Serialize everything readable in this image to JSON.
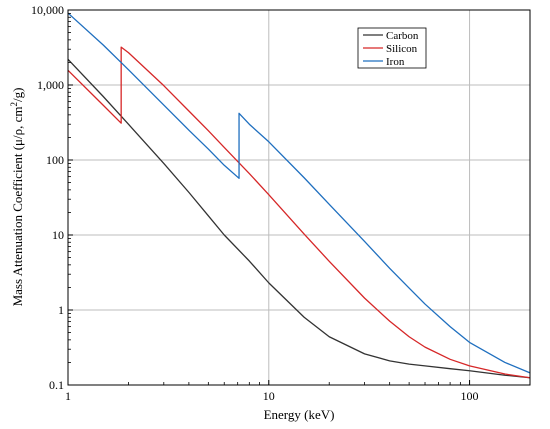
{
  "chart_data": {
    "type": "line",
    "title": "",
    "xlabel": "Energy (keV)",
    "ylabel_main": "Mass Attenuation Coefficient (μ/ρ, cm",
    "ylabel_sup": "2",
    "ylabel_end": "/g)",
    "x_scale": "log",
    "y_scale": "log",
    "xlim": [
      1,
      200
    ],
    "ylim": [
      0.1,
      10000
    ],
    "x_ticks": [
      {
        "value": 1,
        "label": "1"
      },
      {
        "value": 10,
        "label": "10"
      },
      {
        "value": 100,
        "label": "100"
      }
    ],
    "y_ticks": [
      {
        "value": 0.1,
        "label": "0.1"
      },
      {
        "value": 1,
        "label": "1"
      },
      {
        "value": 10,
        "label": "10"
      },
      {
        "value": 100,
        "label": "100"
      },
      {
        "value": 1000,
        "label": "1,000"
      },
      {
        "value": 10000,
        "label": "10,000"
      }
    ],
    "grid": true,
    "legend_position": "top-right",
    "series": [
      {
        "name": "Carbon",
        "color": "#333333",
        "x": [
          1,
          1.5,
          2,
          3,
          4,
          5,
          6,
          8,
          10,
          15,
          20,
          30,
          40,
          50,
          60,
          80,
          100,
          150,
          200
        ],
        "y": [
          2200,
          700,
          300,
          90,
          37,
          18,
          10,
          4.5,
          2.3,
          0.8,
          0.44,
          0.26,
          0.21,
          0.19,
          0.18,
          0.165,
          0.155,
          0.135,
          0.125
        ]
      },
      {
        "name": "Silicon",
        "color": "#d62728",
        "x": [
          1,
          1.5,
          1.84,
          1.84,
          2,
          3,
          4,
          5,
          6,
          8,
          10,
          15,
          20,
          30,
          40,
          50,
          60,
          80,
          100,
          150,
          200
        ],
        "y": [
          1570,
          535,
          310,
          3200,
          2700,
          980,
          450,
          246,
          147,
          66,
          34.5,
          10.3,
          4.46,
          1.44,
          0.71,
          0.44,
          0.32,
          0.22,
          0.18,
          0.14,
          0.125
        ]
      },
      {
        "name": "Iron",
        "color": "#1f6fbf",
        "x": [
          1,
          1.5,
          2,
          3,
          4,
          5,
          6,
          7.11,
          7.11,
          8,
          10,
          15,
          20,
          30,
          40,
          50,
          60,
          80,
          100,
          150,
          200
        ],
        "y": [
          9100,
          3400,
          1600,
          540,
          250,
          140,
          85,
          57,
          420,
          300,
          175,
          58,
          25.7,
          8.2,
          3.6,
          1.96,
          1.2,
          0.6,
          0.37,
          0.2,
          0.145
        ]
      }
    ]
  }
}
